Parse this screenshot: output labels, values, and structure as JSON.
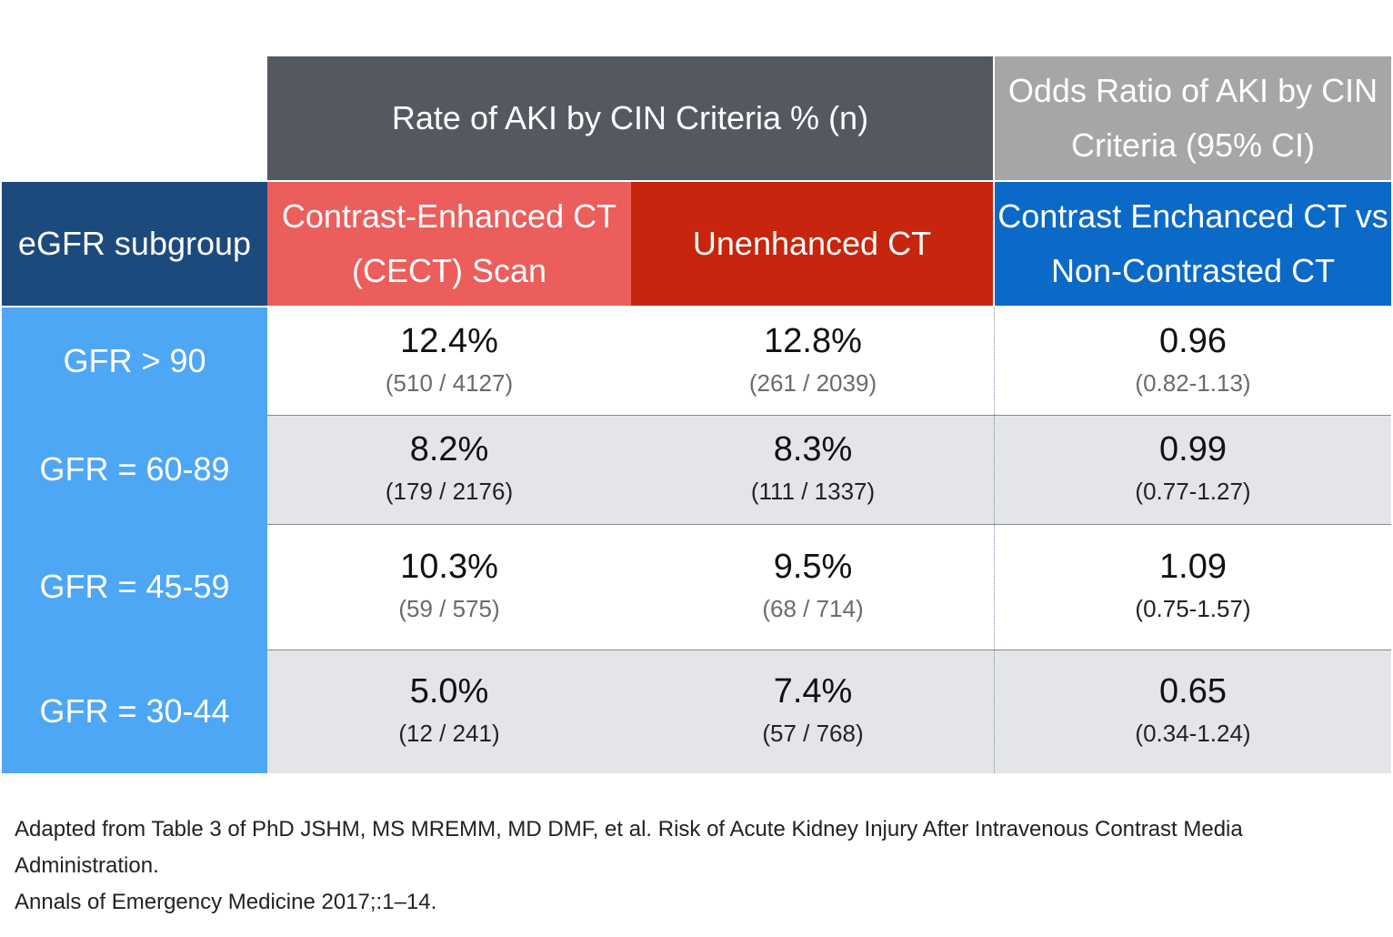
{
  "header": {
    "rate_title": "Rate of AKI by CIN Criteria % (n)",
    "or_title_line1": "Odds Ratio of AKI by CIN",
    "or_title_line2": "Criteria (95% CI)",
    "egfr_label": "eGFR subgroup",
    "cect_line1": "Contrast-Enhanced CT",
    "cect_line2": "(CECT) Scan",
    "unenhanced_label": "Unenhanced CT",
    "or_sub_line1": "Contrast Enchanced CT vs",
    "or_sub_line2": "Non-Contrasted CT"
  },
  "rows": [
    {
      "label": "GFR > 90",
      "cect_rate": "12.4%",
      "cect_n": "(510 / 4127)",
      "unen_rate": "12.8%",
      "unen_n": "(261 / 2039)",
      "or": "0.96",
      "ci": "(0.82-1.13)"
    },
    {
      "label": "GFR = 60-89",
      "cect_rate": "8.2%",
      "cect_n": "(179 / 2176)",
      "unen_rate": "8.3%",
      "unen_n": "(111 / 1337)",
      "or": "0.99",
      "ci": "(0.77-1.27)"
    },
    {
      "label": "GFR = 45-59",
      "cect_rate": "10.3%",
      "cect_n": "(59 / 575)",
      "unen_rate": "9.5%",
      "unen_n": "(68 / 714)",
      "or": "1.09",
      "ci": "(0.75-1.57)"
    },
    {
      "label": "GFR = 30-44",
      "cect_rate": "5.0%",
      "cect_n": "(12 / 241)",
      "unen_rate": "7.4%",
      "unen_n": "(57 / 768)",
      "or": "0.65",
      "ci": "(0.34-1.24)"
    }
  ],
  "caption": {
    "line1": "Adapted from Table 3 of PhD JSHM, MS MREMM, MD DMF, et al. Risk of Acute Kidney Injury After Intravenous Contrast Media Administration.",
    "line2": "Annals of Emergency Medicine 2017;:1–14."
  },
  "colors": {
    "rate_header": "#545961",
    "or_header": "#a6a6a6",
    "egfr_header": "#1c4a7d",
    "cect_header": "#eb5e5b",
    "unenhanced_header": "#c7250d",
    "or_sub_header": "#0b69c7",
    "row_label": "#4ea7f5",
    "row_alt": "#e4e5e8"
  }
}
